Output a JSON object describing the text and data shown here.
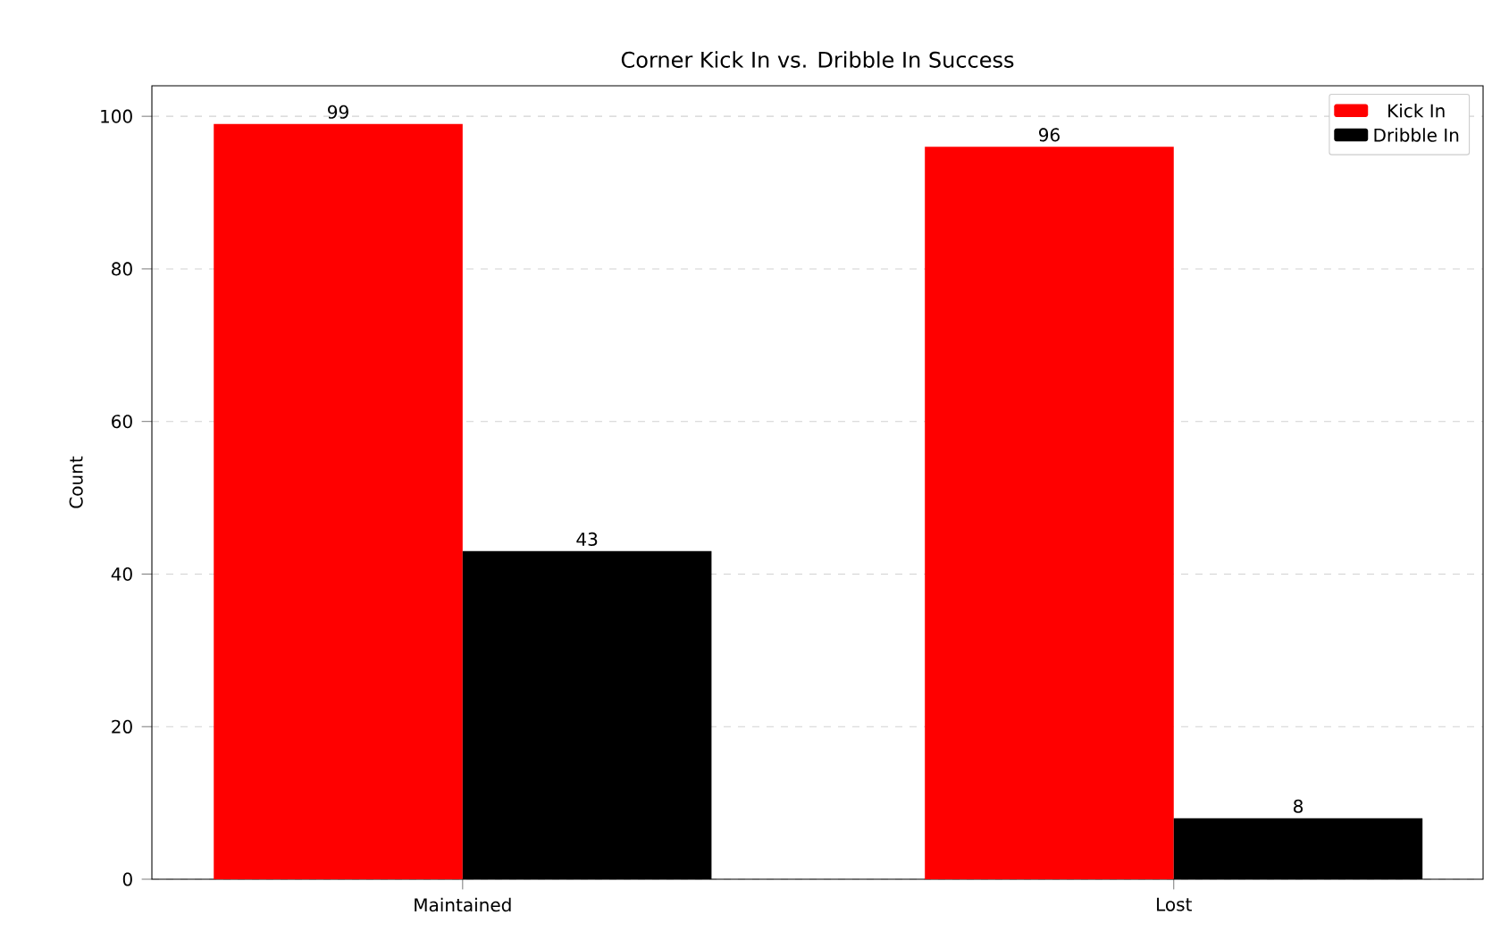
{
  "chart_data": {
    "type": "bar",
    "title": "Corner Kick In vs. Dribble In Success",
    "ylabel": "Count",
    "categories": [
      "Maintained",
      "Lost"
    ],
    "series": [
      {
        "name": "Kick In",
        "color": "#ff0000",
        "values": [
          99,
          96
        ]
      },
      {
        "name": "Dribble In",
        "color": "#000000",
        "values": [
          43,
          8
        ]
      }
    ],
    "ylim": [
      0,
      104
    ],
    "yticks": [
      0,
      20,
      40,
      60,
      80,
      100
    ],
    "grid": "y",
    "legend": "top right",
    "data_labels": true
  }
}
